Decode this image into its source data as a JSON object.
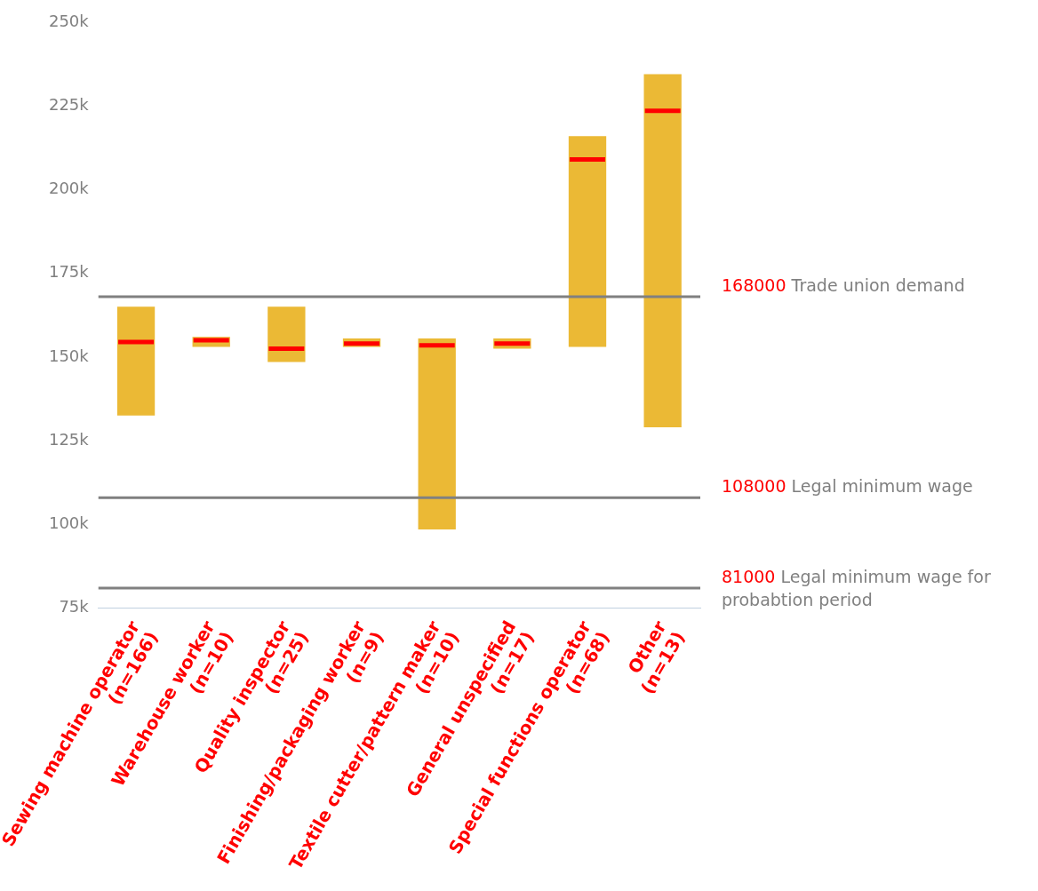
{
  "chart_data": {
    "type": "box",
    "categories": [
      "Sewing machine operator\n(n=166)",
      "Warehouse worker\n(n=10)",
      "Quality inspector\n(n=25)",
      "Finishing/packaging worker\n(n=9)",
      "Textile cutter/pattern maker\n(n=10)",
      "General unspecified\n(n=17)",
      "Special functions operator\n(n=68)",
      "Other\n(n=13)"
    ],
    "series": [
      {
        "color": "#ebb935",
        "boxes": [
          {
            "low": 132500,
            "q1": 132500,
            "median": 154500,
            "q3": 165000,
            "high": 165000
          },
          {
            "low": 153000,
            "q1": 153000,
            "median": 155000,
            "q3": 156000,
            "high": 156000
          },
          {
            "low": 148500,
            "q1": 148500,
            "median": 152500,
            "q3": 165000,
            "high": 165000
          },
          {
            "low": 153000,
            "q1": 153000,
            "median": 154000,
            "q3": 155500,
            "high": 155500
          },
          {
            "low": 98500,
            "q1": 98500,
            "median": 153500,
            "q3": 155500,
            "high": 155500
          },
          {
            "low": 152500,
            "q1": 152500,
            "median": 154000,
            "q3": 155500,
            "high": 155500
          },
          {
            "low": 153000,
            "q1": 153000,
            "median": 209000,
            "q3": 216000,
            "high": 216000
          },
          {
            "low": 129000,
            "q1": 129000,
            "median": 223500,
            "q3": 234500,
            "high": 234500
          }
        ]
      }
    ],
    "ylim": [
      75000,
      250000
    ],
    "yticks": [
      {
        "value": 75000,
        "label": "75k"
      },
      {
        "value": 100000,
        "label": "100k"
      },
      {
        "value": 125000,
        "label": "125k"
      },
      {
        "value": 150000,
        "label": "150k"
      },
      {
        "value": 175000,
        "label": "175k"
      },
      {
        "value": 200000,
        "label": "200k"
      },
      {
        "value": 225000,
        "label": "225k"
      },
      {
        "value": 250000,
        "label": "250k"
      }
    ],
    "ref_lines": [
      {
        "axis": "y",
        "value": 168000,
        "label": "168000 Trade union demand",
        "color": "#808080"
      },
      {
        "axis": "y",
        "value": 108000,
        "label": "108000 Legal minimum wage",
        "color": "#808080"
      },
      {
        "axis": "y",
        "value": 81000,
        "label": "81000 Legal minimum wage for probabtion period",
        "color": "#808080"
      }
    ],
    "grid": false,
    "legend": false
  }
}
